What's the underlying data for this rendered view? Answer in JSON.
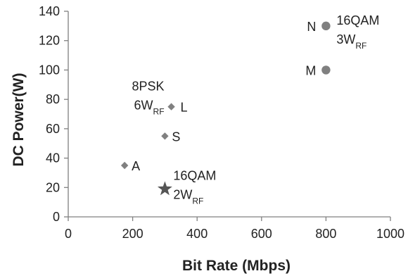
{
  "chart_data": {
    "type": "scatter",
    "title": "",
    "xlabel": "Bit Rate (Mbps)",
    "ylabel": "DC Power(W)",
    "xlim": [
      0,
      1000
    ],
    "ylim": [
      0,
      140
    ],
    "xticks": [
      0,
      200,
      400,
      600,
      800,
      1000
    ],
    "yticks": [
      0,
      20,
      40,
      60,
      80,
      100,
      120,
      140
    ],
    "grid": false,
    "colors": {
      "marker": "#808080",
      "axis": "#808080",
      "text": "#222222"
    },
    "points": [
      {
        "label": "A",
        "x": 175,
        "y": 35,
        "marker": "diamond",
        "note": []
      },
      {
        "label": "",
        "x": 300,
        "y": 19,
        "marker": "star",
        "note": [
          {
            "main": "16QAM",
            "sub": ""
          },
          {
            "main": "2W",
            "sub": "RF"
          }
        ]
      },
      {
        "label": "S",
        "x": 300,
        "y": 55,
        "marker": "diamond",
        "note": []
      },
      {
        "label": "L",
        "x": 320,
        "y": 75,
        "marker": "diamond",
        "note": [
          {
            "main": "8PSK",
            "sub": ""
          },
          {
            "main": "6W",
            "sub": "RF"
          }
        ]
      },
      {
        "label": "M",
        "x": 800,
        "y": 100,
        "marker": "circle",
        "note": []
      },
      {
        "label": "N",
        "x": 800,
        "y": 130,
        "marker": "circle",
        "note": [
          {
            "main": "16QAM",
            "sub": ""
          },
          {
            "main": "3W",
            "sub": "RF"
          }
        ]
      }
    ]
  }
}
